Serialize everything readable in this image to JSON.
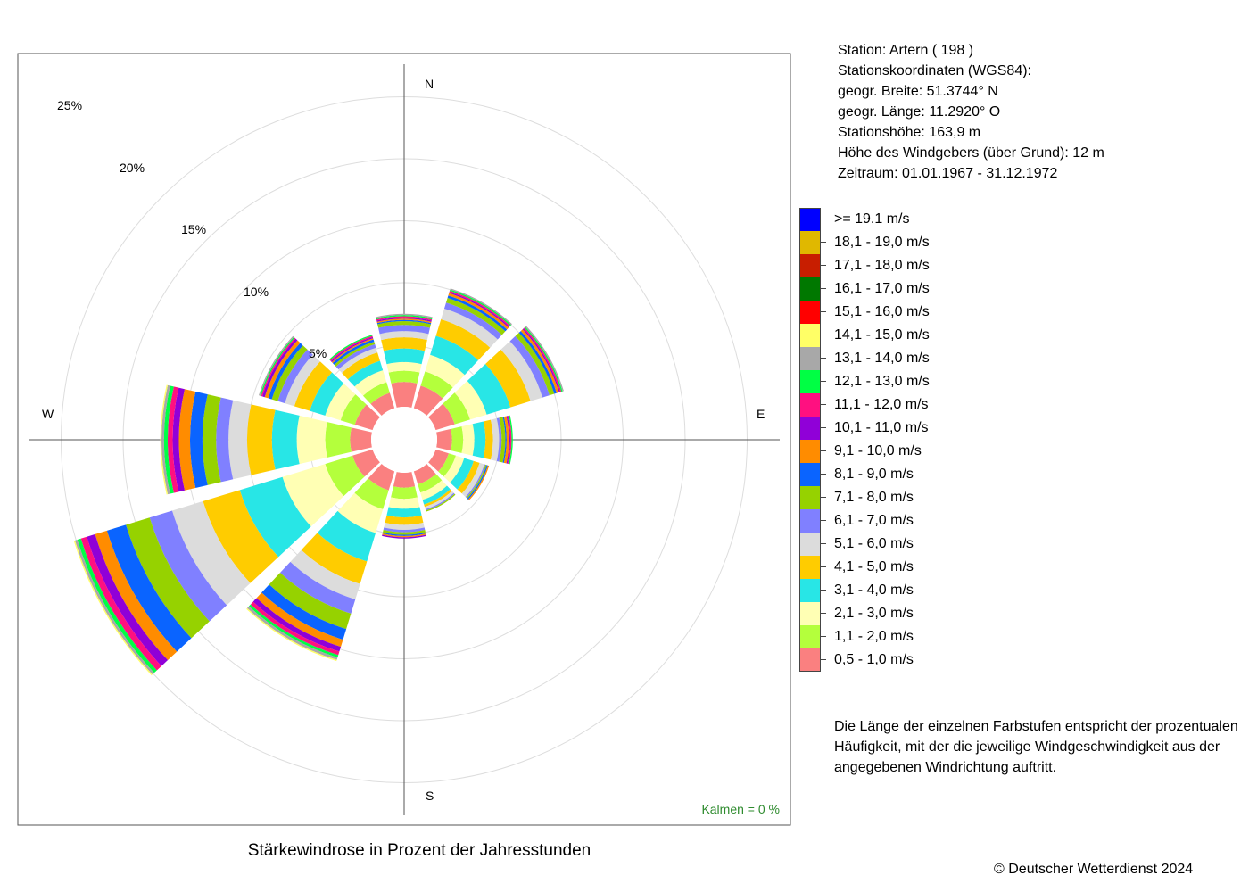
{
  "title": "Stärkewindrose in Prozent der Jahresstunden",
  "station": {
    "line1": "Station:  Artern  ( 198 )",
    "line2": "Stationskoordinaten (WGS84):",
    "line3": "geogr. Breite: 51.3744° N",
    "line4": "geogr. Länge: 11.2920° O",
    "line5": "Stationshöhe: 163,9 m",
    "line6": "Höhe des Windgebers (über Grund): 12 m",
    "line7": "Zeitraum: 01.01.1967 - 31.12.1972"
  },
  "note": "Die Länge der einzelnen Farbstufen entspricht der prozentualen Häufigkeit, mit der die jeweilige Windgeschwindigkeit aus der angegebenen Windrichtung auftritt.",
  "copyright": "© Deutscher Wetterdienst  2024",
  "calm_label": "Kalmen  =  0 %",
  "legend": [
    {
      "label": ">= 19.1 m/s",
      "color": "#0000ff"
    },
    {
      "label": "18,1 - 19,0 m/s",
      "color": "#e0b800"
    },
    {
      "label": "17,1 - 18,0 m/s",
      "color": "#c81e00"
    },
    {
      "label": "16,1 - 17,0 m/s",
      "color": "#007800"
    },
    {
      "label": "15,1 - 16,0 m/s",
      "color": "#ff0000"
    },
    {
      "label": "14,1 - 15,0 m/s",
      "color": "#ffff66"
    },
    {
      "label": "13,1 - 14,0 m/s",
      "color": "#a8a8a8"
    },
    {
      "label": "12,1 - 13,0 m/s",
      "color": "#00ff44"
    },
    {
      "label": "11,1 - 12,0 m/s",
      "color": "#ff1080"
    },
    {
      "label": "10,1 - 11,0 m/s",
      "color": "#9000d8"
    },
    {
      "label": "9,1 - 10,0 m/s",
      "color": "#ff8c00"
    },
    {
      "label": "8,1 - 9,0 m/s",
      "color": "#0a64ff"
    },
    {
      "label": "7,1 - 8,0 m/s",
      "color": "#96d200"
    },
    {
      "label": "6,1 - 7,0 m/s",
      "color": "#8080ff"
    },
    {
      "label": "5,1 - 6,0 m/s",
      "color": "#dcdcdc"
    },
    {
      "label": "4,1 - 5,0 m/s",
      "color": "#ffcc00"
    },
    {
      "label": "3,1 - 4,0 m/s",
      "color": "#28e6e6"
    },
    {
      "label": "2,1 - 3,0 m/s",
      "color": "#ffffb4"
    },
    {
      "label": "1,1 - 2,0 m/s",
      "color": "#b4ff3c"
    },
    {
      "label": "0,5 - 1,0 m/s",
      "color": "#fa8080"
    }
  ],
  "chart_data": {
    "type": "windrose",
    "title": "Stärkewindrose in Prozent der Jahresstunden",
    "radial_ticks": [
      5,
      10,
      15,
      20,
      25
    ],
    "radial_tick_labels": [
      "5%",
      "10%",
      "15%",
      "20%",
      "25%"
    ],
    "radial_max": 25,
    "compass_labels": [
      "N",
      "E",
      "S",
      "W"
    ],
    "speed_classes": [
      "0,5 - 1,0 m/s",
      "1,1 - 2,0 m/s",
      "2,1 - 3,0 m/s",
      "3,1 - 4,0 m/s",
      "4,1 - 5,0 m/s",
      "5,1 - 6,0 m/s",
      "6,1 - 7,0 m/s",
      "7,1 - 8,0 m/s",
      "8,1 - 9,0 m/s",
      "9,1 - 10,0 m/s",
      "10,1 - 11,0 m/s",
      "11,1 - 12,0 m/s",
      "12,1 - 13,0 m/s",
      "13,1 - 14,0 m/s",
      "14,1 - 15,0 m/s",
      "15,1 - 16,0 m/s",
      "16,1 - 17,0 m/s",
      "17,1 - 18,0 m/s",
      "18,1 - 19,0 m/s",
      ">= 19.1 m/s"
    ],
    "directions_deg": [
      0,
      30,
      60,
      90,
      120,
      150,
      180,
      210,
      240,
      270,
      300,
      330
    ],
    "sectors": [
      {
        "dir": 0,
        "bounds": [
          2.0,
          2.9,
          3.6,
          4.7,
          5.6,
          6.1,
          6.6,
          6.9,
          7.0,
          7.1,
          7.2,
          7.3,
          7.4,
          7.5
        ]
      },
      {
        "dir": 30,
        "bounds": [
          1.9,
          3.1,
          4.5,
          6.1,
          7.5,
          8.4,
          8.9,
          9.3,
          9.5,
          9.7,
          9.8,
          9.9,
          10.0,
          10.1
        ]
      },
      {
        "dir": 60,
        "bounds": [
          1.6,
          2.9,
          4.3,
          6.3,
          8.0,
          9.0,
          9.6,
          10.0,
          10.2,
          10.4,
          10.5,
          10.6,
          10.7,
          10.8
        ]
      },
      {
        "dir": 90,
        "bounds": [
          1.2,
          2.1,
          3.0,
          3.9,
          4.5,
          5.0,
          5.2,
          5.5,
          5.6,
          5.8,
          5.9,
          6.0,
          6.1
        ]
      },
      {
        "dir": 120,
        "bounds": [
          1.1,
          1.7,
          2.4,
          3.2,
          3.7,
          4.1,
          4.2,
          4.3,
          4.4,
          4.5
        ]
      },
      {
        "dir": 150,
        "bounds": [
          1.1,
          1.8,
          2.4,
          2.8,
          3.0,
          3.2,
          3.3,
          3.4
        ]
      },
      {
        "dir": 180,
        "bounds": [
          1.2,
          2.1,
          2.9,
          3.6,
          4.2,
          4.6,
          4.8,
          5.0,
          5.1,
          5.2,
          5.3
        ]
      },
      {
        "dir": 210,
        "bounds": [
          1.6,
          3.2,
          5.2,
          7.6,
          9.5,
          10.8,
          12.0,
          13.3,
          14.2,
          14.8,
          15.2,
          15.5,
          15.7,
          15.9,
          16.0
        ]
      },
      {
        "dir": 240,
        "bounds": [
          1.7,
          4.0,
          7.6,
          11.2,
          14.3,
          16.9,
          18.8,
          20.8,
          22.4,
          23.4,
          24.1,
          24.6,
          24.9,
          25.1,
          25.2
        ]
      },
      {
        "dir": 270,
        "bounds": [
          1.7,
          3.7,
          6.0,
          8.0,
          10.0,
          11.5,
          12.5,
          13.6,
          14.6,
          15.5,
          16.0,
          16.4,
          16.7,
          16.9,
          17.0
        ]
      },
      {
        "dir": 300,
        "bounds": [
          1.5,
          2.7,
          4.0,
          5.3,
          6.6,
          7.4,
          8.0,
          8.5,
          8.8,
          9.1,
          9.3,
          9.4,
          9.5,
          9.6
        ]
      },
      {
        "dir": 330,
        "bounds": [
          1.3,
          2.2,
          3.2,
          4.0,
          4.7,
          5.1,
          5.4,
          5.6,
          5.8,
          5.9,
          6.0,
          6.1,
          6.2
        ]
      }
    ]
  }
}
